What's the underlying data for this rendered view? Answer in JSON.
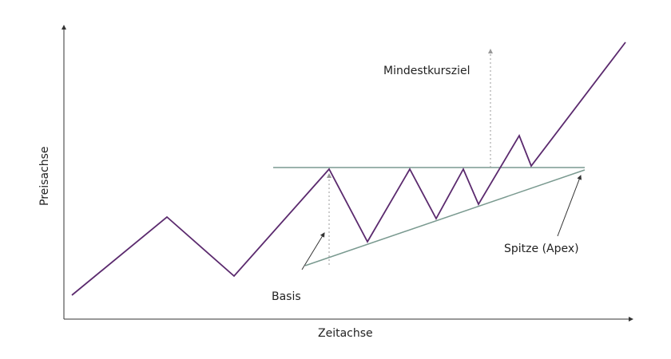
{
  "labels": {
    "x_axis": "Zeitachse",
    "y_axis": "Preisachse",
    "target": "Mindestkursziel",
    "base": "Basis",
    "apex": "Spitze (Apex)"
  },
  "colors": {
    "price_line": "#5b2a6e",
    "pattern_lines": "#7a9a90",
    "axes": "#333333",
    "dashed": "#999999",
    "annotation_arrows": "#333333"
  }
}
